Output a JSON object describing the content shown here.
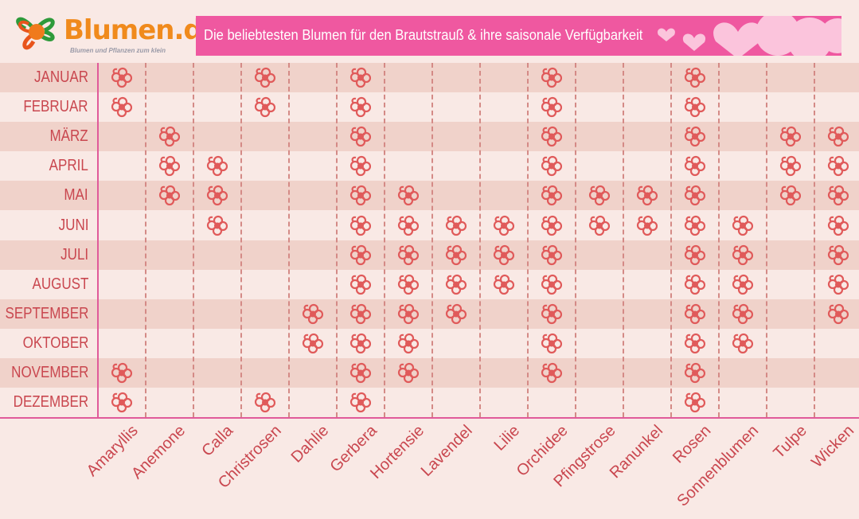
{
  "logo": {
    "brand": "Blumen.de",
    "tagline": "Blumen und Pflanzen zum klein"
  },
  "title": "Die beliebtesten Blumen für den Brautstrauß & ihre saisonale Verfügbarkeit",
  "colors": {
    "title_bar": "#ef58a0",
    "marker": "#e05a5a",
    "label": "#c9474f",
    "row_alt": "#f0d2ca",
    "background": "#f9e9e5",
    "axis": "#e05a9a"
  },
  "marker_icon": "flower-icon",
  "chart_data": {
    "type": "table",
    "title": "Die beliebtesten Blumen für den Brautstrauß & ihre saisonale Verfügbarkeit",
    "rows": [
      "JANUAR",
      "FEBRUAR",
      "MÄRZ",
      "APRIL",
      "MAI",
      "JUNI",
      "JULI",
      "AUGUST",
      "SEPTEMBER",
      "OKTOBER",
      "NOVEMBER",
      "DEZEMBER"
    ],
    "columns": [
      "Amaryllis",
      "Anemone",
      "Calla",
      "Christrosen",
      "Dahlie",
      "Gerbera",
      "Hortensie",
      "Lavendel",
      "Lilie",
      "Orchidee",
      "Pfingstrose",
      "Ranunkel",
      "Rosen",
      "Sonnenblumen",
      "Tulpe",
      "Wicken"
    ],
    "availability": {
      "JANUAR": [
        "Amaryllis",
        "Christrosen",
        "Gerbera",
        "Orchidee",
        "Rosen"
      ],
      "FEBRUAR": [
        "Amaryllis",
        "Christrosen",
        "Gerbera",
        "Orchidee",
        "Rosen"
      ],
      "MÄRZ": [
        "Anemone",
        "Gerbera",
        "Orchidee",
        "Rosen",
        "Tulpe",
        "Wicken"
      ],
      "APRIL": [
        "Anemone",
        "Calla",
        "Gerbera",
        "Orchidee",
        "Rosen",
        "Tulpe",
        "Wicken"
      ],
      "MAI": [
        "Anemone",
        "Calla",
        "Gerbera",
        "Hortensie",
        "Orchidee",
        "Pfingstrose",
        "Ranunkel",
        "Rosen",
        "Tulpe",
        "Wicken"
      ],
      "JUNI": [
        "Calla",
        "Gerbera",
        "Hortensie",
        "Lavendel",
        "Lilie",
        "Orchidee",
        "Pfingstrose",
        "Ranunkel",
        "Rosen",
        "Sonnenblumen",
        "Wicken"
      ],
      "JULI": [
        "Gerbera",
        "Hortensie",
        "Lavendel",
        "Lilie",
        "Orchidee",
        "Rosen",
        "Sonnenblumen",
        "Wicken"
      ],
      "AUGUST": [
        "Gerbera",
        "Hortensie",
        "Lavendel",
        "Lilie",
        "Orchidee",
        "Rosen",
        "Sonnenblumen",
        "Wicken"
      ],
      "SEPTEMBER": [
        "Dahlie",
        "Gerbera",
        "Hortensie",
        "Lavendel",
        "Orchidee",
        "Rosen",
        "Sonnenblumen",
        "Wicken"
      ],
      "OKTOBER": [
        "Dahlie",
        "Gerbera",
        "Hortensie",
        "Orchidee",
        "Rosen",
        "Sonnenblumen"
      ],
      "NOVEMBER": [
        "Amaryllis",
        "Gerbera",
        "Hortensie",
        "Orchidee",
        "Rosen"
      ],
      "DEZEMBER": [
        "Amaryllis",
        "Christrosen",
        "Gerbera",
        "Rosen"
      ]
    }
  }
}
